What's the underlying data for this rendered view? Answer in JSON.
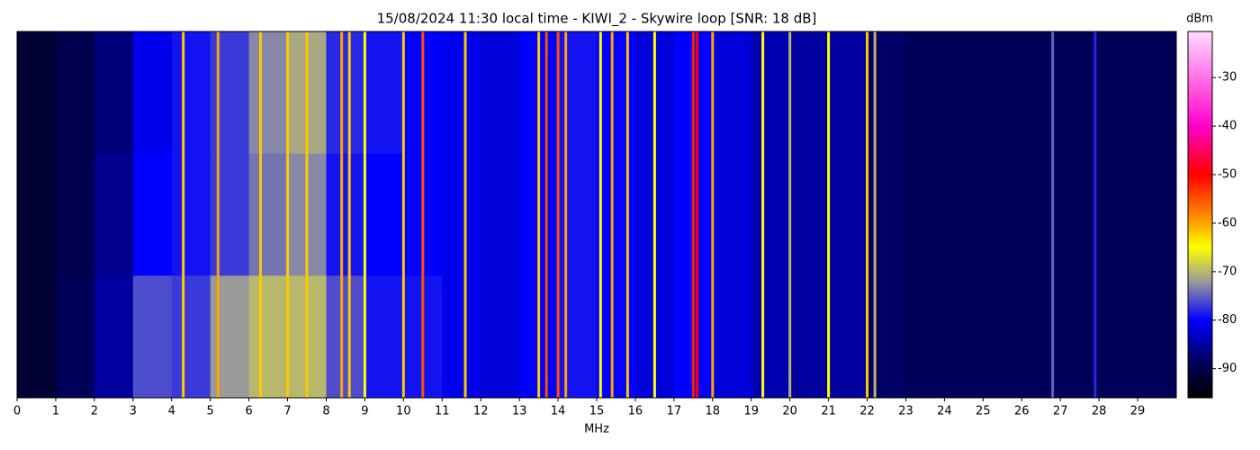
{
  "chart_data": {
    "type": "heatmap",
    "title": "15/08/2024 11:30 local time - KIWI_2 - Skywire loop [SNR: 18 dB]",
    "x_label": "MHz",
    "colorbar_label": "dBm",
    "bins": [
      0,
      1,
      2,
      3,
      4,
      5,
      6,
      7,
      8,
      9,
      10,
      11,
      12,
      13,
      14,
      15,
      16,
      17,
      18,
      19,
      20,
      21,
      22,
      23,
      24,
      25,
      26,
      27,
      28,
      29,
      30
    ],
    "values": [
      [
        -92,
        -90,
        -87,
        -81,
        -79,
        -77,
        -73,
        -71,
        -78,
        -79,
        -80,
        -81,
        -82,
        -80,
        -79,
        -80,
        -82,
        -80,
        -82,
        -84,
        -85,
        -85,
        -88,
        -89,
        -89,
        -89,
        -89,
        -89,
        -89,
        -89
      ],
      [
        -92,
        -90,
        -86,
        -80,
        -79,
        -77,
        -74,
        -73,
        -79,
        -80,
        -80,
        -81,
        -82,
        -80,
        -79,
        -80,
        -82,
        -80,
        -82,
        -84,
        -85,
        -85,
        -88,
        -89,
        -89,
        -89,
        -89,
        -89,
        -89,
        -89
      ],
      [
        -92,
        -89,
        -85,
        -76,
        -77,
        -72,
        -70,
        -70,
        -76,
        -79,
        -79,
        -81,
        -82,
        -80,
        -79,
        -80,
        -82,
        -80,
        -82,
        -84,
        -85,
        -85,
        -88,
        -89,
        -89,
        -89,
        -89,
        -89,
        -89,
        -89
      ]
    ],
    "signals": {
      "x": [
        4.3,
        5.2,
        6.3,
        7.0,
        7.5,
        8.4,
        8.6,
        9.0,
        10.0,
        10.5,
        11.6,
        13.5,
        13.7,
        14.0,
        14.2,
        15.1,
        15.4,
        15.8,
        16.5,
        17.5,
        17.6,
        18.0,
        19.3,
        20.0,
        21.0,
        22.0,
        22.2,
        26.8,
        27.9
      ],
      "levels": [
        -62,
        -60,
        -62,
        -62,
        -62,
        -60,
        -62,
        -65,
        -62,
        -55,
        -62,
        -62,
        -55,
        -55,
        -60,
        -65,
        -60,
        -62,
        -65,
        -52,
        -50,
        -60,
        -65,
        -70,
        -65,
        -62,
        -70,
        -75,
        -78
      ]
    },
    "xlim": [
      0,
      30
    ],
    "xticks": [
      0,
      1,
      2,
      3,
      4,
      5,
      6,
      7,
      8,
      9,
      10,
      11,
      12,
      13,
      14,
      15,
      16,
      17,
      18,
      19,
      20,
      21,
      22,
      23,
      24,
      25,
      26,
      27,
      28,
      29
    ],
    "clim": [
      -96,
      -20.5
    ],
    "cticks": [
      -30,
      -40,
      -50,
      -60,
      -70,
      -80,
      -90
    ],
    "colorscale": [
      [
        -96,
        "#000000"
      ],
      [
        -88,
        "#000066"
      ],
      [
        -80,
        "#0000ff"
      ],
      [
        -72,
        "#9a9a9a"
      ],
      [
        -65,
        "#ffff00"
      ],
      [
        -58,
        "#ff8000"
      ],
      [
        -50,
        "#ff0000"
      ],
      [
        -40,
        "#ff00cc"
      ],
      [
        -20.5,
        "#ffddff"
      ]
    ]
  }
}
